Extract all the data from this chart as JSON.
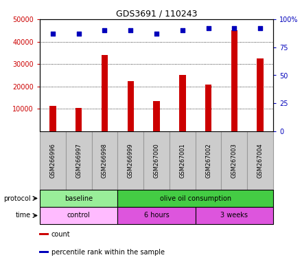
{
  "title": "GDS3691 / 110243",
  "samples": [
    "GSM266996",
    "GSM266997",
    "GSM266998",
    "GSM266999",
    "GSM267000",
    "GSM267001",
    "GSM267002",
    "GSM267003",
    "GSM267004"
  ],
  "counts": [
    11500,
    10500,
    34000,
    22500,
    13500,
    25000,
    21000,
    45000,
    32500
  ],
  "percentile_ranks": [
    87,
    87,
    90,
    90,
    87,
    90,
    92,
    92,
    92
  ],
  "ylim_left": [
    0,
    50000
  ],
  "ylim_right": [
    0,
    100
  ],
  "yticks_left": [
    10000,
    20000,
    30000,
    40000,
    50000
  ],
  "yticks_right": [
    0,
    25,
    50,
    75,
    100
  ],
  "ytick_right_labels": [
    "0",
    "25",
    "50",
    "75",
    "100%"
  ],
  "bar_color": "#cc0000",
  "dot_color": "#0000bb",
  "bar_width": 0.25,
  "protocol_rows": [
    {
      "text": "baseline",
      "start": 0,
      "end": 3,
      "color": "#99ee99"
    },
    {
      "text": "olive oil consumption",
      "start": 3,
      "end": 9,
      "color": "#44cc44"
    }
  ],
  "time_rows": [
    {
      "text": "control",
      "start": 0,
      "end": 3,
      "color": "#ffbbff"
    },
    {
      "text": "6 hours",
      "start": 3,
      "end": 6,
      "color": "#dd55dd"
    },
    {
      "text": "3 weeks",
      "start": 6,
      "end": 9,
      "color": "#dd55dd"
    }
  ],
  "sample_box_color": "#cccccc",
  "sample_box_edgecolor": "#999999",
  "tick_color_left": "#cc0000",
  "tick_color_right": "#0000bb",
  "legend_items": [
    {
      "color": "#cc0000",
      "label": "count"
    },
    {
      "color": "#0000bb",
      "label": "percentile rank within the sample"
    }
  ]
}
